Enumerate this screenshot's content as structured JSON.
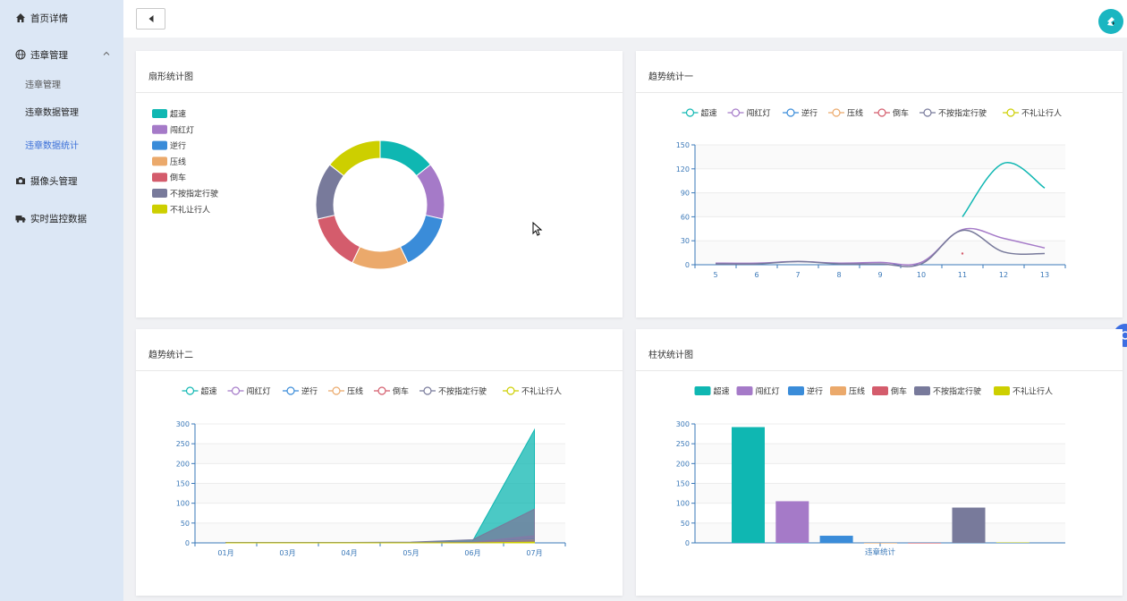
{
  "sidebar": {
    "items": [
      {
        "label": "首页详情",
        "icon": "home-icon"
      },
      {
        "label": "违章管理",
        "icon": "globe-icon"
      },
      {
        "label": "摄像头管理",
        "icon": "camera-icon"
      },
      {
        "label": "实时监控数据",
        "icon": "truck-icon"
      }
    ],
    "sub_items": [
      {
        "label": "违章管理"
      },
      {
        "label": "违章数据管理"
      },
      {
        "label": "违章数据统计"
      }
    ]
  },
  "colors": {
    "series": [
      "#0fb7b2",
      "#a57ac8",
      "#3a8cd9",
      "#eba96b",
      "#d45c6c",
      "#787a9b",
      "#cdcf00"
    ],
    "active_nav": "#3a6fd8",
    "avatar": "#1bb6c1"
  },
  "legend_labels": [
    "超速",
    "闯红灯",
    "逆行",
    "压线",
    "倒车",
    "不按指定行驶",
    "不礼让行人"
  ],
  "cards": {
    "pie": {
      "title": "扇形统计图"
    },
    "trend1": {
      "title": "趋势统计一"
    },
    "trend2": {
      "title": "趋势统计二"
    },
    "bar": {
      "title": "柱状统计图"
    }
  },
  "chart_data": [
    {
      "type": "pie",
      "title": "扇形统计图",
      "categories": [
        "超速",
        "闯红灯",
        "逆行",
        "压线",
        "倒车",
        "不按指定行驶",
        "不礼让行人"
      ],
      "values": [
        1,
        1,
        1,
        1,
        1,
        1,
        1
      ],
      "legend": "left"
    },
    {
      "type": "line",
      "title": "趋势统计一",
      "x": [
        "5",
        "6",
        "7",
        "8",
        "9",
        "10",
        "11",
        "12",
        "13"
      ],
      "ylim": [
        0,
        150
      ],
      "yticks": [
        0,
        30,
        60,
        90,
        120,
        150
      ],
      "legend": "top",
      "series": [
        {
          "name": "超速",
          "values": [
            null,
            null,
            null,
            null,
            null,
            null,
            60,
            127,
            96
          ]
        },
        {
          "name": "闯红灯",
          "values": [
            2,
            2,
            4,
            2,
            3,
            3,
            44,
            33,
            21
          ]
        },
        {
          "name": "逆行",
          "values": [
            null,
            null,
            null,
            null,
            null,
            null,
            null,
            null,
            null
          ]
        },
        {
          "name": "压线",
          "values": [
            null,
            null,
            null,
            null,
            null,
            null,
            null,
            null,
            null
          ]
        },
        {
          "name": "倒车",
          "values": [
            null,
            null,
            null,
            null,
            null,
            null,
            14,
            null,
            null
          ]
        },
        {
          "name": "不按指定行驶",
          "values": [
            1,
            1,
            4,
            1,
            1,
            1,
            43,
            16,
            14
          ]
        },
        {
          "name": "不礼让行人",
          "values": [
            null,
            null,
            null,
            null,
            null,
            null,
            null,
            null,
            null
          ]
        }
      ]
    },
    {
      "type": "area",
      "title": "趋势统计二",
      "x": [
        "01月",
        "03月",
        "04月",
        "05月",
        "06月",
        "07月"
      ],
      "ylim": [
        0,
        300
      ],
      "yticks": [
        0,
        50,
        100,
        150,
        200,
        250,
        300
      ],
      "legend": "top",
      "series": [
        {
          "name": "超速",
          "values": [
            0,
            0,
            0,
            0,
            5,
            285
          ]
        },
        {
          "name": "闯红灯",
          "values": [
            0,
            0,
            0,
            0,
            2,
            18
          ]
        },
        {
          "name": "逆行",
          "values": [
            0,
            0,
            0,
            0,
            1,
            10
          ]
        },
        {
          "name": "压线",
          "values": [
            0,
            0,
            0,
            0,
            1,
            8
          ]
        },
        {
          "name": "倒车",
          "values": [
            0,
            0,
            0,
            0,
            1,
            5
          ]
        },
        {
          "name": "不按指定行驶",
          "values": [
            1,
            1,
            1,
            2,
            8,
            85
          ]
        },
        {
          "name": "不礼让行人",
          "values": [
            0,
            0,
            0,
            0,
            0,
            2
          ]
        }
      ]
    },
    {
      "type": "bar",
      "title": "柱状统计图",
      "categories": [
        "违章统计"
      ],
      "ylim": [
        0,
        300
      ],
      "yticks": [
        0,
        50,
        100,
        150,
        200,
        250,
        300
      ],
      "legend": "top",
      "series": [
        {
          "name": "超速",
          "values": [
            292
          ]
        },
        {
          "name": "闯红灯",
          "values": [
            105
          ]
        },
        {
          "name": "逆行",
          "values": [
            18
          ]
        },
        {
          "name": "压线",
          "values": [
            0
          ]
        },
        {
          "name": "倒车",
          "values": [
            0
          ]
        },
        {
          "name": "不按指定行驶",
          "values": [
            89
          ]
        },
        {
          "name": "不礼让行人",
          "values": [
            1
          ]
        }
      ]
    }
  ]
}
